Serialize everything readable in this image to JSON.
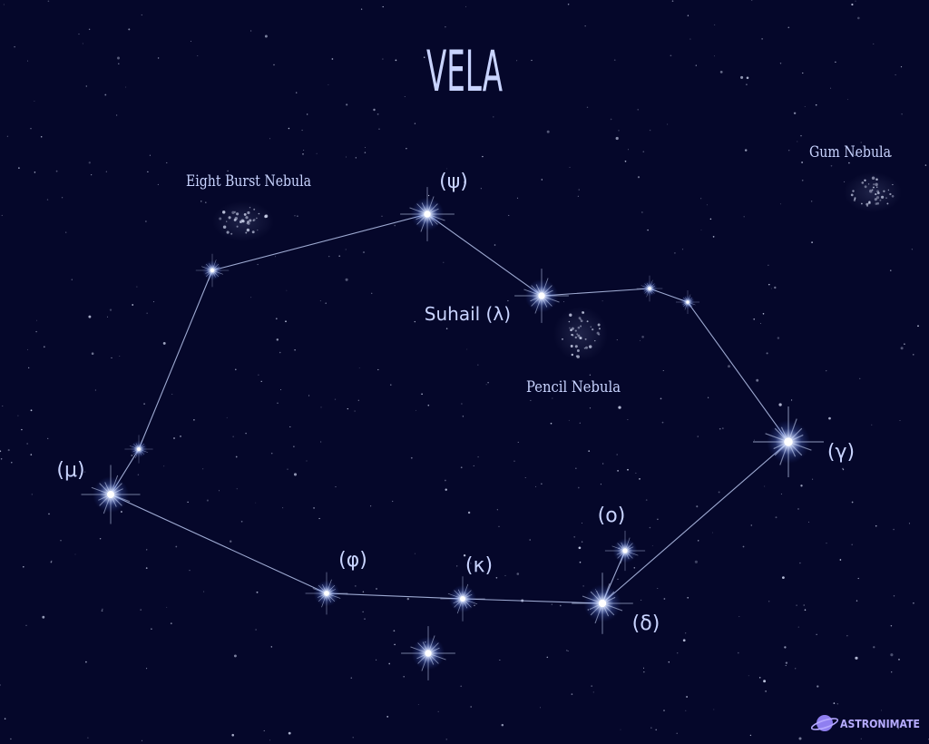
{
  "title": "VELA",
  "colors": {
    "background": "#05072a",
    "label": "#c9d4ff",
    "line": "#b8c6ee",
    "star": "#ffffff",
    "star_glow": "#7fa4ff",
    "brand": "#9c8cf0"
  },
  "star_labels": {
    "psi": "(ψ)",
    "suhail": "Suhail (λ)",
    "mu": "(μ)",
    "gamma": "(γ)",
    "omicron": "(ο)",
    "phi": "(φ)",
    "kappa": "(κ)",
    "delta": "(δ)"
  },
  "nebulae": {
    "eight_burst": "Eight Burst Nebula",
    "gum": "Gum Nebula",
    "pencil": "Pencil Nebula"
  },
  "brand": {
    "name": "ASTRONIMATE",
    "icon": "planet-icon"
  }
}
